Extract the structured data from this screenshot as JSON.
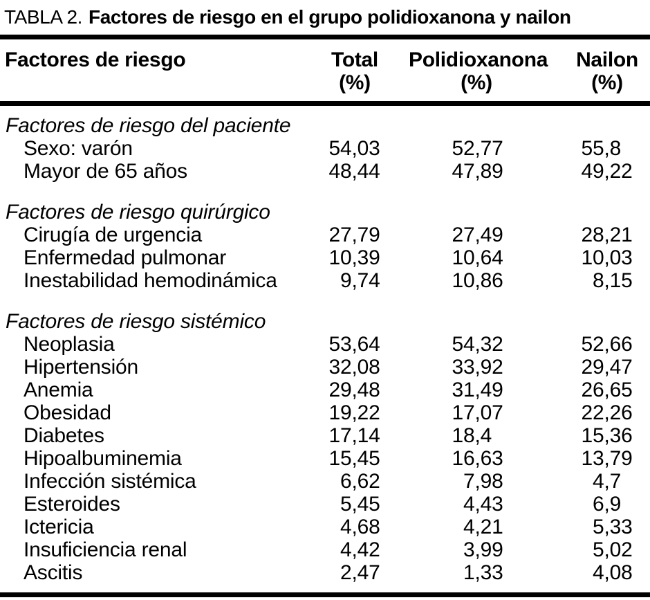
{
  "table": {
    "title_prefix": "TABLA 2.",
    "title": "Factores de riesgo en el grupo polidioxanona y nailon",
    "columns": {
      "factor": "Factores de riesgo",
      "total": "Total",
      "polidioxanona": "Polidioxanona",
      "nailon": "Nailon",
      "unit": "(%)"
    },
    "sections": [
      {
        "label": "Factores de riesgo del paciente",
        "rows": [
          {
            "label": "Sexo: varón",
            "total": "54,03",
            "polidioxanona": "52,77",
            "nailon": "55,8"
          },
          {
            "label": "Mayor de 65 años",
            "total": "48,44",
            "polidioxanona": "47,89",
            "nailon": "49,22"
          }
        ]
      },
      {
        "label": "Factores de riesgo quirúrgico",
        "rows": [
          {
            "label": "Cirugía de urgencia",
            "total": "27,79",
            "polidioxanona": "27,49",
            "nailon": "28,21"
          },
          {
            "label": "Enfermedad pulmonar",
            "total": "10,39",
            "polidioxanona": "10,64",
            "nailon": "10,03"
          },
          {
            "label": "Inestabilidad hemodinámica",
            "total": "9,74",
            "polidioxanona": "10,86",
            "nailon": "8,15"
          }
        ]
      },
      {
        "label": "Factores de riesgo sistémico",
        "rows": [
          {
            "label": "Neoplasia",
            "total": "53,64",
            "polidioxanona": "54,32",
            "nailon": "52,66"
          },
          {
            "label": "Hipertensión",
            "total": "32,08",
            "polidioxanona": "33,92",
            "nailon": "29,47"
          },
          {
            "label": "Anemia",
            "total": "29,48",
            "polidioxanona": "31,49",
            "nailon": "26,65"
          },
          {
            "label": "Obesidad",
            "total": "19,22",
            "polidioxanona": "17,07",
            "nailon": "22,26"
          },
          {
            "label": "Diabetes",
            "total": "17,14",
            "polidioxanona": "18,4",
            "nailon": "15,36"
          },
          {
            "label": "Hipoalbuminemia",
            "total": "15,45",
            "polidioxanona": "16,63",
            "nailon": "13,79"
          },
          {
            "label": "Infección sistémica",
            "total": "6,62",
            "polidioxanona": "7,98",
            "nailon": "4,7"
          },
          {
            "label": "Esteroides",
            "total": "5,45",
            "polidioxanona": "4,43",
            "nailon": "6,9"
          },
          {
            "label": "Ictericia",
            "total": "4,68",
            "polidioxanona": "4,21",
            "nailon": "5,33"
          },
          {
            "label": "Insuficiencia renal",
            "total": "4,42",
            "polidioxanona": "3,99",
            "nailon": "5,02"
          },
          {
            "label": "Ascitis",
            "total": "2,47",
            "polidioxanona": "1,33",
            "nailon": "4,08"
          }
        ]
      }
    ],
    "colors": {
      "text": "#000000",
      "background": "#ffffff",
      "rule": "#000000"
    }
  }
}
